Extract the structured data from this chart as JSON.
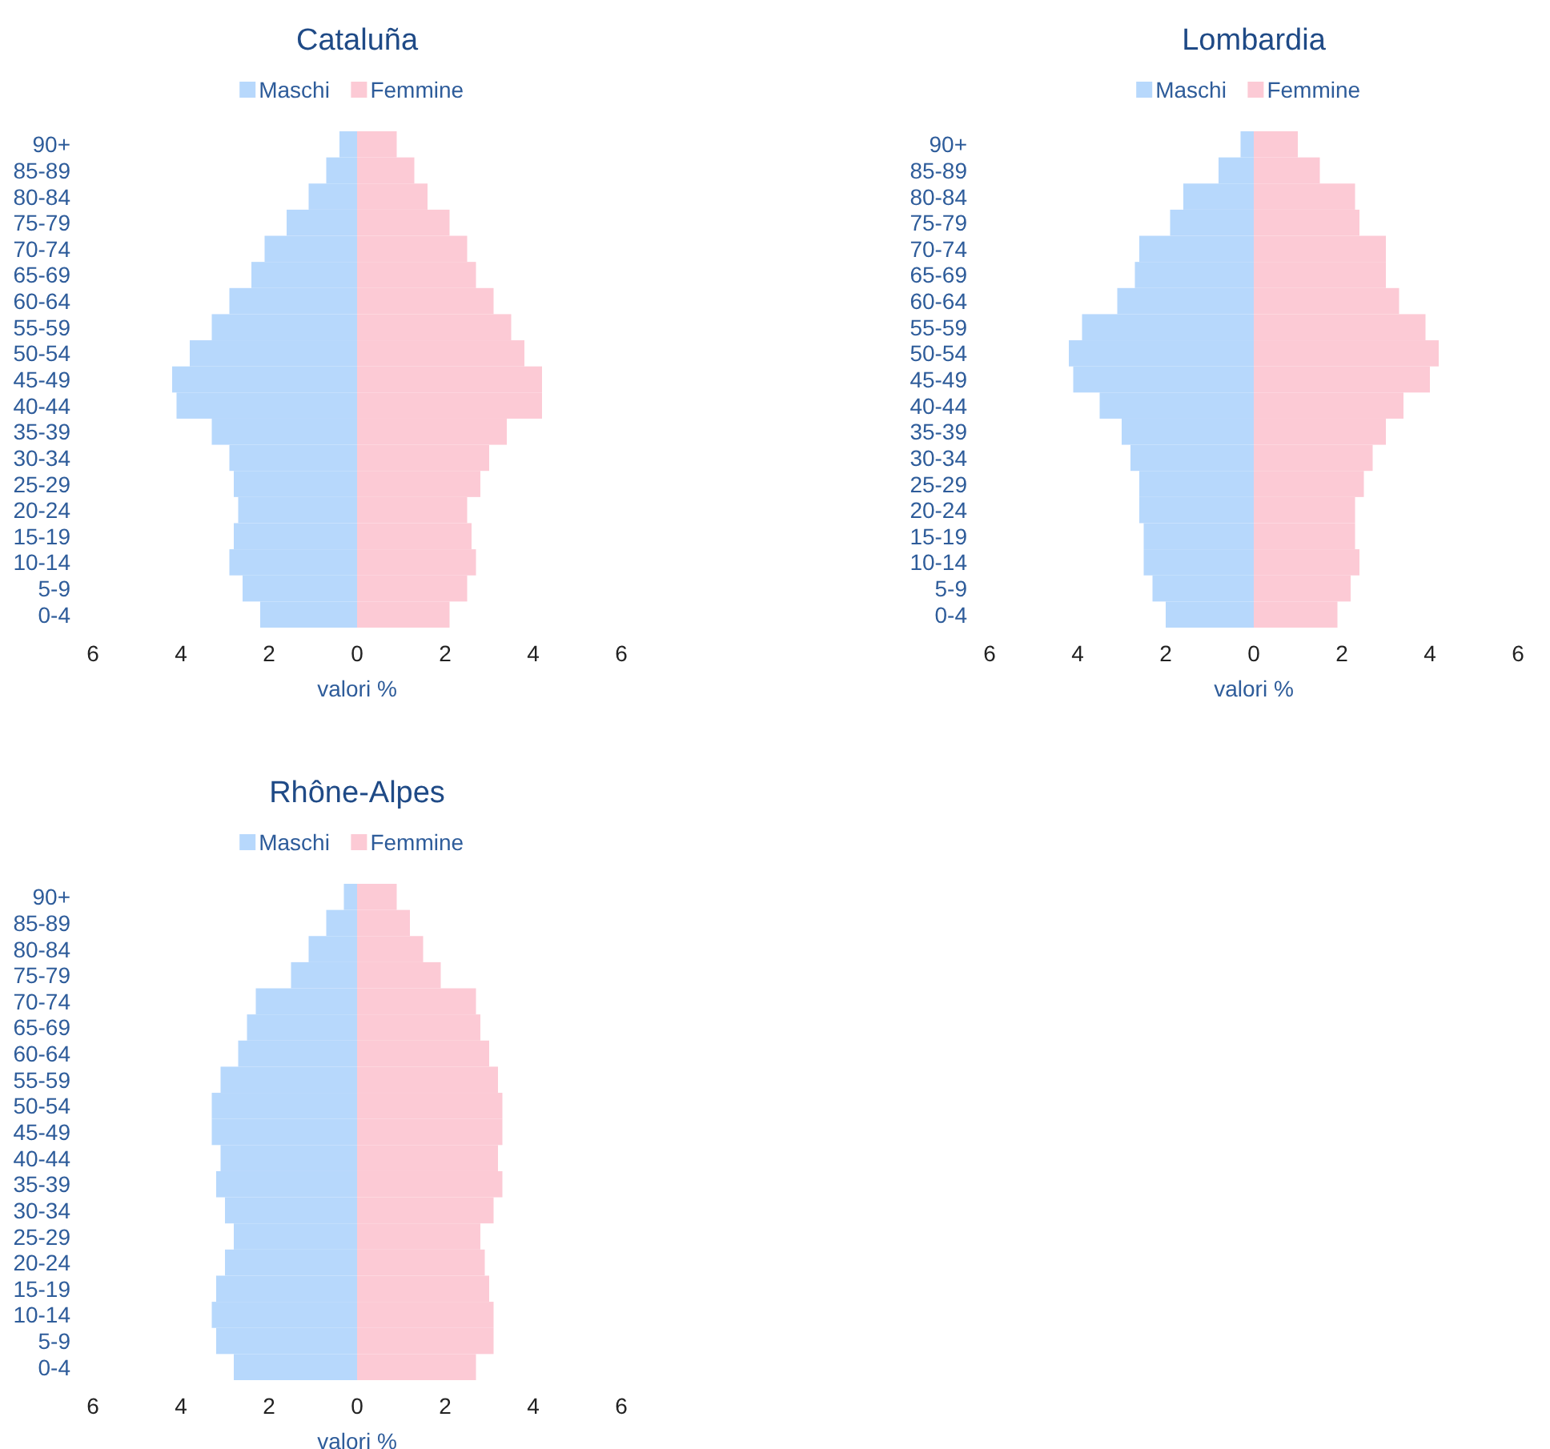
{
  "chart_data": [
    {
      "type": "bar",
      "orientation": "horizontal",
      "stacked": true,
      "title": "Cataluña",
      "xlabel": "valori %",
      "legend": "top",
      "grid": false,
      "categories": [
        "90+",
        "85-89",
        "80-84",
        "75-79",
        "70-74",
        "65-69",
        "60-64",
        "55-59",
        "50-54",
        "45-49",
        "40-44",
        "35-39",
        "30-34",
        "25-29",
        "20-24",
        "15-19",
        "10-14",
        "5-9",
        "0-4"
      ],
      "xlim": [
        -6,
        6
      ],
      "xticks": [
        {
          "value": -6,
          "label": "6"
        },
        {
          "value": -4,
          "label": "4"
        },
        {
          "value": -2,
          "label": "2"
        },
        0,
        2,
        4,
        6
      ],
      "series": [
        {
          "name": "Maschi",
          "color": "#b7d8fc",
          "values": [
            -0.4,
            -0.7,
            -1.1,
            -1.6,
            -2.1,
            -2.4,
            -2.9,
            -3.3,
            -3.8,
            -4.2,
            -4.1,
            -3.3,
            -2.9,
            -2.8,
            -2.7,
            -2.8,
            -2.9,
            -2.6,
            -2.2
          ]
        },
        {
          "name": "Femmine",
          "color": "#fccad5",
          "values": [
            0.9,
            1.3,
            1.6,
            2.1,
            2.5,
            2.7,
            3.1,
            3.5,
            3.8,
            4.2,
            4.2,
            3.4,
            3.0,
            2.8,
            2.5,
            2.6,
            2.7,
            2.5,
            2.1
          ]
        }
      ]
    },
    {
      "type": "bar",
      "orientation": "horizontal",
      "stacked": true,
      "title": "Lombardia",
      "xlabel": "valori %",
      "legend": "top",
      "grid": false,
      "categories": [
        "90+",
        "85-89",
        "80-84",
        "75-79",
        "70-74",
        "65-69",
        "60-64",
        "55-59",
        "50-54",
        "45-49",
        "40-44",
        "35-39",
        "30-34",
        "25-29",
        "20-24",
        "15-19",
        "10-14",
        "5-9",
        "0-4"
      ],
      "xlim": [
        -6,
        6
      ],
      "xticks": [
        {
          "value": -6,
          "label": "6"
        },
        {
          "value": -4,
          "label": "4"
        },
        {
          "value": -2,
          "label": "2"
        },
        0,
        2,
        4,
        6
      ],
      "series": [
        {
          "name": "Maschi",
          "color": "#b7d8fc",
          "values": [
            -0.3,
            -0.8,
            -1.6,
            -1.9,
            -2.6,
            -2.7,
            -3.1,
            -3.9,
            -4.2,
            -4.1,
            -3.5,
            -3.0,
            -2.8,
            -2.6,
            -2.6,
            -2.5,
            -2.5,
            -2.3,
            -2.0
          ]
        },
        {
          "name": "Femmine",
          "color": "#fccad5",
          "values": [
            1.0,
            1.5,
            2.3,
            2.4,
            3.0,
            3.0,
            3.3,
            3.9,
            4.2,
            4.0,
            3.4,
            3.0,
            2.7,
            2.5,
            2.3,
            2.3,
            2.4,
            2.2,
            1.9
          ]
        }
      ]
    },
    {
      "type": "bar",
      "orientation": "horizontal",
      "stacked": true,
      "title": "Rhône-Alpes",
      "xlabel": "valori %",
      "legend": "top",
      "grid": false,
      "categories": [
        "90+",
        "85-89",
        "80-84",
        "75-79",
        "70-74",
        "65-69",
        "60-64",
        "55-59",
        "50-54",
        "45-49",
        "40-44",
        "35-39",
        "30-34",
        "25-29",
        "20-24",
        "15-19",
        "10-14",
        "5-9",
        "0-4"
      ],
      "xlim": [
        -6,
        6
      ],
      "xticks": [
        {
          "value": -6,
          "label": "6"
        },
        {
          "value": -4,
          "label": "4"
        },
        {
          "value": -2,
          "label": "2"
        },
        0,
        2,
        4,
        6
      ],
      "series": [
        {
          "name": "Maschi",
          "color": "#b7d8fc",
          "values": [
            -0.3,
            -0.7,
            -1.1,
            -1.5,
            -2.3,
            -2.5,
            -2.7,
            -3.1,
            -3.3,
            -3.3,
            -3.1,
            -3.2,
            -3.0,
            -2.8,
            -3.0,
            -3.2,
            -3.3,
            -3.2,
            -2.8
          ]
        },
        {
          "name": "Femmine",
          "color": "#fccad5",
          "values": [
            0.9,
            1.2,
            1.5,
            1.9,
            2.7,
            2.8,
            3.0,
            3.2,
            3.3,
            3.3,
            3.2,
            3.3,
            3.1,
            2.8,
            2.9,
            3.0,
            3.1,
            3.1,
            2.7
          ]
        }
      ]
    }
  ]
}
